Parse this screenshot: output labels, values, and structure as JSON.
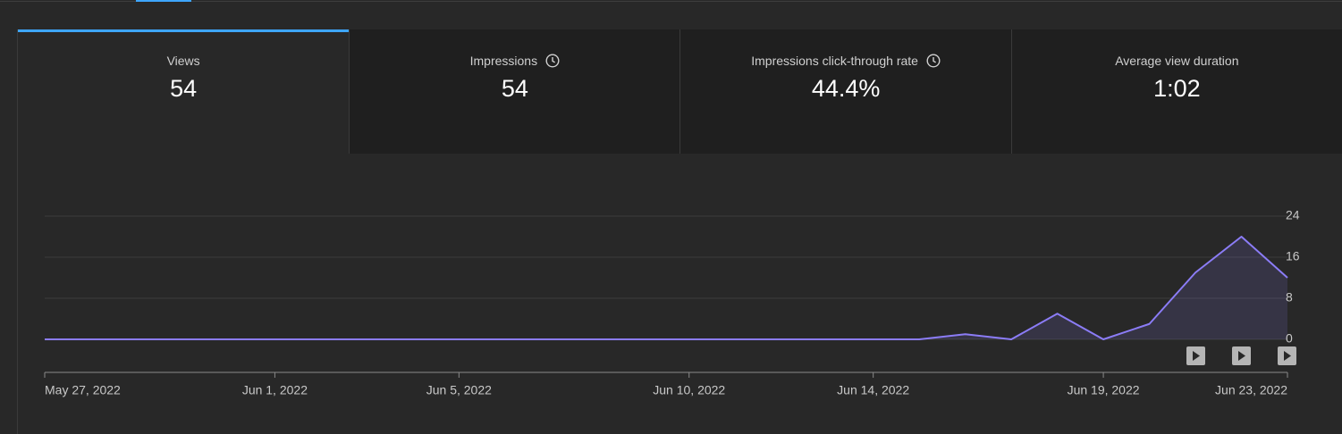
{
  "metrics": [
    {
      "label": "Views",
      "value": "54"
    },
    {
      "label": "Impressions",
      "value": "54"
    },
    {
      "label": "Impressions click-through rate",
      "value": "44.4%"
    },
    {
      "label": "Average view duration",
      "value": "1:02"
    }
  ],
  "chart_data": {
    "type": "line",
    "x": [
      "2022-05-27",
      "2022-05-28",
      "2022-05-29",
      "2022-05-30",
      "2022-05-31",
      "2022-06-01",
      "2022-06-02",
      "2022-06-03",
      "2022-06-04",
      "2022-06-05",
      "2022-06-06",
      "2022-06-07",
      "2022-06-08",
      "2022-06-09",
      "2022-06-10",
      "2022-06-11",
      "2022-06-12",
      "2022-06-13",
      "2022-06-14",
      "2022-06-15",
      "2022-06-16",
      "2022-06-17",
      "2022-06-18",
      "2022-06-19",
      "2022-06-20",
      "2022-06-21",
      "2022-06-22",
      "2022-06-23"
    ],
    "values": [
      0,
      0,
      0,
      0,
      0,
      0,
      0,
      0,
      0,
      0,
      0,
      0,
      0,
      0,
      0,
      0,
      0,
      0,
      0,
      0,
      1,
      0,
      5,
      0,
      3,
      13,
      20,
      12
    ],
    "color": "#8b7cf6",
    "xlim": [
      "2022-05-27",
      "2022-06-23"
    ],
    "xticks": [
      {
        "value": "2022-05-27",
        "label": "May 27, 2022"
      },
      {
        "value": "2022-06-01",
        "label": "Jun 1, 2022"
      },
      {
        "value": "2022-06-05",
        "label": "Jun 5, 2022"
      },
      {
        "value": "2022-06-10",
        "label": "Jun 10, 2022"
      },
      {
        "value": "2022-06-14",
        "label": "Jun 14, 2022"
      },
      {
        "value": "2022-06-19",
        "label": "Jun 19, 2022"
      },
      {
        "value": "2022-06-23",
        "label": "Jun 23, 2022"
      }
    ],
    "ylim": [
      0,
      24
    ],
    "yticks": [
      0,
      8,
      16,
      24
    ],
    "grid": true
  }
}
